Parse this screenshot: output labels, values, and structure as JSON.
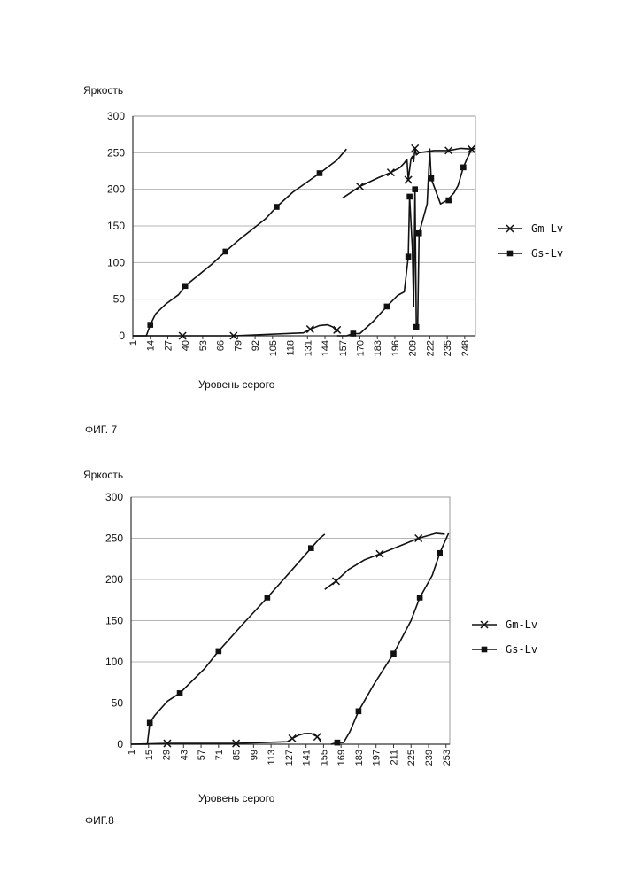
{
  "figures": [
    {
      "caption": "ФИГ. 7"
    },
    {
      "caption": "ФИГ.8"
    }
  ],
  "chart_data": [
    {
      "type": "line",
      "ylabel": "Яркость",
      "xlabel": "Уровень серого",
      "ylim": [
        0,
        300
      ],
      "yticks": [
        0,
        50,
        100,
        150,
        200,
        250,
        300
      ],
      "xlim": [
        1,
        256
      ],
      "xticks": [
        1,
        14,
        27,
        40,
        53,
        66,
        79,
        92,
        105,
        118,
        131,
        144,
        157,
        170,
        183,
        196,
        209,
        222,
        235,
        248
      ],
      "grid": true,
      "legend_position": "right",
      "series": [
        {
          "name": "Gm-Lv",
          "marker": "x",
          "segments": [
            [
              [
                1,
                0
              ],
              [
                38,
                0
              ],
              [
                76,
                0
              ],
              [
                128,
                4
              ],
              [
                133,
                9
              ],
              [
                140,
                14
              ],
              [
                146,
                15
              ],
              [
                150,
                12
              ],
              [
                152,
                8
              ],
              [
                153,
                5
              ]
            ],
            [
              [
                157,
                188
              ],
              [
                170,
                204
              ],
              [
                184,
                216
              ],
              [
                193,
                223
              ],
              [
                200,
                230
              ],
              [
                203,
                236
              ],
              [
                205,
                241
              ],
              [
                206,
                213
              ],
              [
                208,
                242
              ],
              [
                209,
                245
              ],
              [
                210,
                238
              ],
              [
                211,
                256
              ],
              [
                212,
                247
              ],
              [
                214,
                250
              ],
              [
                225,
                253
              ],
              [
                236,
                253
              ],
              [
                245,
                256
              ],
              [
                253,
                255
              ],
              [
                255,
                256
              ]
            ]
          ]
        },
        {
          "name": "Gs-Lv",
          "marker": "square",
          "segments": [
            [
              [
                1,
                0
              ],
              [
                11,
                0
              ],
              [
                14,
                15
              ],
              [
                18,
                30
              ],
              [
                26,
                44
              ],
              [
                35,
                56
              ],
              [
                40,
                68
              ],
              [
                60,
                98
              ],
              [
                70,
                115
              ],
              [
                80,
                131
              ],
              [
                100,
                160
              ],
              [
                108,
                176
              ],
              [
                120,
                196
              ],
              [
                140,
                222
              ],
              [
                153,
                240
              ],
              [
                160,
                255
              ]
            ],
            [
              [
                153,
                0
              ],
              [
                160,
                0
              ],
              [
                165,
                3
              ],
              [
                170,
                3
              ],
              [
                180,
                20
              ],
              [
                190,
                40
              ],
              [
                198,
                55
              ],
              [
                203,
                60
              ],
              [
                206,
                108
              ],
              [
                207,
                190
              ],
              [
                209,
                120
              ],
              [
                210,
                40
              ],
              [
                211,
                200
              ],
              [
                212,
                10
              ],
              [
                213,
                12
              ],
              [
                214,
                140
              ],
              [
                220,
                180
              ],
              [
                222,
                255
              ],
              [
                223,
                215
              ],
              [
                230,
                180
              ],
              [
                235,
                185
              ],
              [
                240,
                195
              ],
              [
                243,
                205
              ],
              [
                247,
                230
              ],
              [
                250,
                243
              ],
              [
                253,
                254
              ],
              [
                256,
                256
              ]
            ]
          ]
        }
      ],
      "marker_points": {
        "Gm-Lv": [
          [
            38,
            0
          ],
          [
            76,
            0
          ],
          [
            133,
            9
          ],
          [
            153,
            8
          ],
          [
            170,
            204
          ],
          [
            193,
            223
          ],
          [
            206,
            213
          ],
          [
            211,
            256
          ],
          [
            236,
            253
          ],
          [
            253,
            255
          ]
        ],
        "Gs-Lv": [
          [
            14,
            15
          ],
          [
            40,
            68
          ],
          [
            70,
            115
          ],
          [
            108,
            176
          ],
          [
            140,
            222
          ],
          [
            165,
            3
          ],
          [
            190,
            40
          ],
          [
            206,
            108
          ],
          [
            207,
            190
          ],
          [
            211,
            200
          ],
          [
            212,
            12
          ],
          [
            214,
            140
          ],
          [
            223,
            215
          ],
          [
            236,
            185
          ],
          [
            247,
            230
          ]
        ]
      }
    },
    {
      "type": "line",
      "ylabel": "Яркость",
      "xlabel": "Уровень серого",
      "ylim": [
        0,
        300
      ],
      "yticks": [
        0,
        50,
        100,
        150,
        200,
        250,
        300
      ],
      "xlim": [
        1,
        256
      ],
      "xticks": [
        1,
        15,
        29,
        43,
        57,
        71,
        85,
        99,
        113,
        127,
        141,
        155,
        169,
        183,
        197,
        211,
        225,
        239,
        253
      ],
      "grid": true,
      "legend_position": "right",
      "series": [
        {
          "name": "Gm-Lv",
          "marker": "x",
          "segments": [
            [
              [
                1,
                0
              ],
              [
                30,
                1
              ],
              [
                85,
                1
              ],
              [
                126,
                3
              ],
              [
                130,
                7
              ],
              [
                135,
                11
              ],
              [
                140,
                13
              ],
              [
                145,
                13
              ],
              [
                150,
                9
              ],
              [
                152,
                5
              ],
              [
                153,
                2
              ]
            ],
            [
              [
                156,
                188
              ],
              [
                165,
                198
              ],
              [
                175,
                212
              ],
              [
                188,
                224
              ],
              [
                200,
                231
              ],
              [
                215,
                240
              ],
              [
                231,
                250
              ],
              [
                245,
                256
              ],
              [
                252,
                255
              ]
            ]
          ]
        },
        {
          "name": "Gs-Lv",
          "marker": "square",
          "segments": [
            [
              [
                1,
                0
              ],
              [
                14,
                0
              ],
              [
                16,
                26
              ],
              [
                20,
                35
              ],
              [
                30,
                52
              ],
              [
                40,
                62
              ],
              [
                60,
                92
              ],
              [
                71,
                113
              ],
              [
                90,
                145
              ],
              [
                110,
                178
              ],
              [
                130,
                212
              ],
              [
                145,
                238
              ],
              [
                152,
                250
              ],
              [
                156,
                255
              ]
            ],
            [
              [
                161,
                0
              ],
              [
                166,
                2
              ],
              [
                171,
                2
              ],
              [
                176,
                15
              ],
              [
                183,
                40
              ],
              [
                195,
                72
              ],
              [
                211,
                110
              ],
              [
                225,
                150
              ],
              [
                232,
                178
              ],
              [
                242,
                205
              ],
              [
                248,
                232
              ],
              [
                255,
                256
              ]
            ]
          ]
        }
      ],
      "marker_points": {
        "Gm-Lv": [
          [
            30,
            1
          ],
          [
            85,
            1
          ],
          [
            130,
            7
          ],
          [
            150,
            9
          ],
          [
            165,
            198
          ],
          [
            200,
            231
          ],
          [
            231,
            250
          ]
        ],
        "Gs-Lv": [
          [
            16,
            26
          ],
          [
            40,
            62
          ],
          [
            71,
            113
          ],
          [
            110,
            178
          ],
          [
            145,
            238
          ],
          [
            166,
            2
          ],
          [
            183,
            40
          ],
          [
            211,
            110
          ],
          [
            232,
            178
          ],
          [
            248,
            232
          ]
        ]
      }
    }
  ]
}
